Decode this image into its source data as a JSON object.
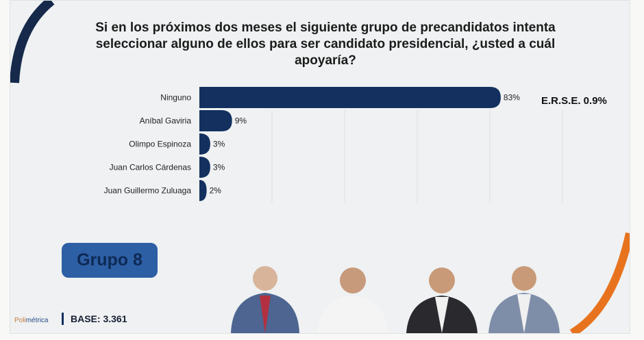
{
  "title": "Si en los próximos dos meses el siguiente grupo de precandidatos intenta seleccionar alguno de ellos para ser candidato presidencial, ¿usted a cuál apoyaría?",
  "erse": "E.R.S.E. 0.9%",
  "group_label": "Grupo 8",
  "base": "BASE: 3.361",
  "logo": {
    "a": "Poli",
    "b": "métrica"
  },
  "colors": {
    "bar": "#13305f",
    "accent": "#e8731f",
    "group": "#2d5fa5"
  },
  "chart_data": {
    "type": "bar",
    "orientation": "horizontal",
    "categories": [
      "Ninguno",
      "Aníbal Gaviria",
      "Olimpo Espinoza",
      "Juan Carlos Cárdenas",
      "Juan Guillermo Zuluaga"
    ],
    "values": [
      83,
      9,
      3,
      3,
      2
    ],
    "value_labels": [
      "83%",
      "9%",
      "3%",
      "3%",
      "2%"
    ],
    "xlim": [
      0,
      100
    ],
    "grid": true,
    "title": "",
    "xlabel": "",
    "ylabel": ""
  }
}
